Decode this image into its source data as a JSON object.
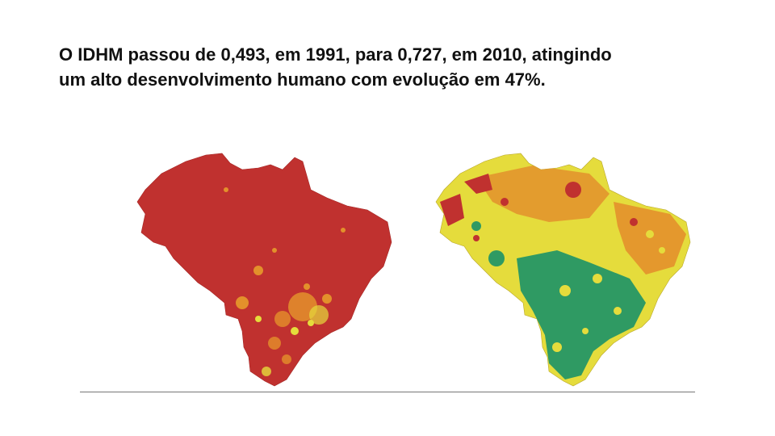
{
  "slide": {
    "heading_line1": "O IDHM passou de 0,493, em 1991, para 0,727, em 2010, atingindo",
    "heading_line2": "um alto desenvolvimento humano com evolução em 47%."
  },
  "legend_colors": {
    "very_low": "#c0312f",
    "low": "#e3902b",
    "medium": "#e5dc3c",
    "high": "#2f9a63"
  },
  "maps": [
    {
      "year_context": "1991",
      "dominant_color": "#c0312f"
    },
    {
      "year_context": "2010",
      "dominant_color": "#e5dc3c"
    }
  ]
}
